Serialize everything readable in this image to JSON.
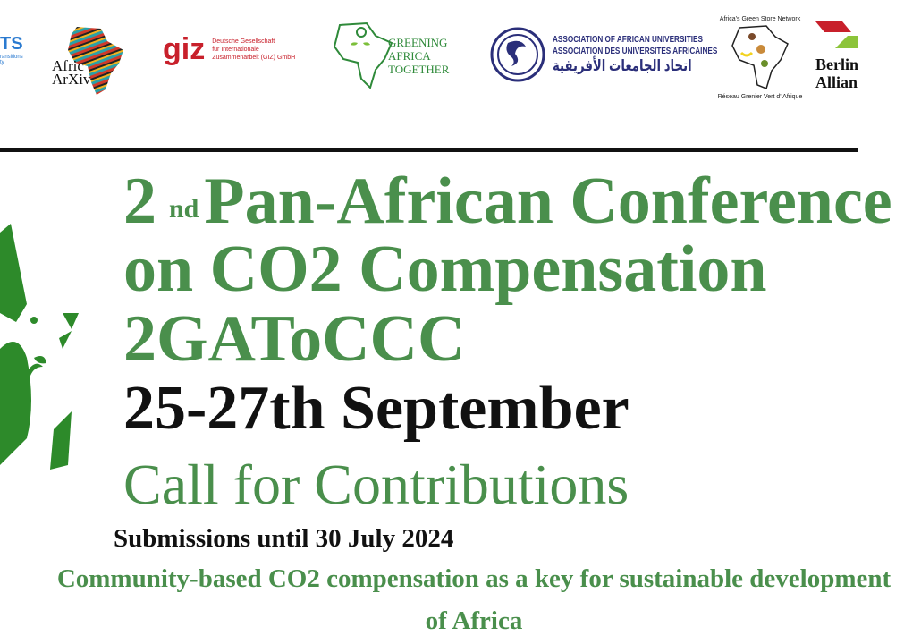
{
  "logos": {
    "partial_left": {
      "text": "TS",
      "subtext": "ransitions\nty"
    },
    "afric_arxiv": {
      "line1": "Afric",
      "line2": "ArXiv"
    },
    "giz": {
      "mark": "giz",
      "line1": "Deutsche Gesellschaft",
      "line2": "für Internationale",
      "line3": "Zusammenarbeit (GIZ) GmbH"
    },
    "greening_africa": {
      "line1": "GREENING",
      "line2": "AFRICA",
      "line3": "TOGETHER"
    },
    "aau": {
      "line1": "ASSOCIATION OF AFRICAN UNIVERSITIES",
      "line2": "ASSOCIATION DES UNIVERSITES AFRICAINES",
      "line3": "اتحاد الجامعات الأفريقية"
    },
    "green_store": {
      "top": "Africa's Green Store Network",
      "bottom": "Réseau Grenier Vert d' Afrique"
    },
    "berlin": {
      "line1": "Berlin",
      "line2": "Allian"
    }
  },
  "headline": {
    "ordinal_number": "2",
    "ordinal_suffix": "nd",
    "line1": "Pan-African Conference",
    "line2": "on CO2 Compensation",
    "line3": "2GAToCCC",
    "dates": "25-27th September",
    "call": "Call for Contributions",
    "deadline": "Submissions until 30 July 2024",
    "theme_line1": "Community-based CO2 compensation as a key for sustainable development",
    "theme_line2": "of Africa"
  },
  "colors": {
    "green": "#4a8f4c",
    "black": "#111111"
  }
}
